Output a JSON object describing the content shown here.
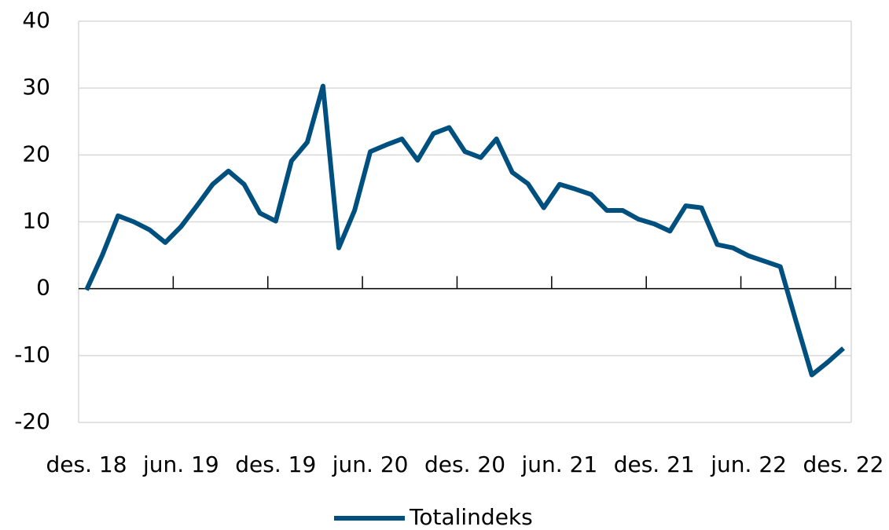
{
  "chart_data": {
    "type": "line",
    "categories": [
      "des. 18",
      null,
      null,
      null,
      null,
      null,
      "jun. 19",
      null,
      null,
      null,
      null,
      null,
      "des. 19",
      null,
      null,
      null,
      null,
      null,
      "jun. 20",
      null,
      null,
      null,
      null,
      null,
      "des. 20",
      null,
      null,
      null,
      null,
      null,
      "jun. 21",
      null,
      null,
      null,
      null,
      null,
      "des. 21",
      null,
      null,
      null,
      null,
      null,
      "jun. 22",
      null,
      null,
      null,
      null,
      null,
      "des. 22"
    ],
    "series": [
      {
        "name": "Totalindeks",
        "color": "#00507f",
        "values": [
          -0.2,
          5,
          10.9,
          10,
          8.8,
          6.9,
          9.3,
          12.4,
          15.6,
          17.6,
          15.6,
          11.3,
          10.1,
          19.1,
          21.9,
          30.3,
          6.1,
          11.7,
          20.5,
          21.5,
          22.4,
          19.2,
          23.2,
          24.1,
          20.5,
          19.6,
          22.4,
          17.4,
          15.7,
          12.1,
          15.6,
          14.9,
          14.1,
          11.7,
          11.7,
          10.4,
          9.7,
          8.6,
          12.4,
          12.1,
          6.6,
          6.1,
          4.9,
          4.1,
          3.3,
          -4.9,
          -12.9,
          -11,
          -8.9
        ]
      }
    ],
    "ylim": [
      -20,
      40
    ],
    "yticks": [
      -20,
      -10,
      0,
      10,
      20,
      30,
      40
    ],
    "grid": true,
    "legend": "bottom"
  }
}
